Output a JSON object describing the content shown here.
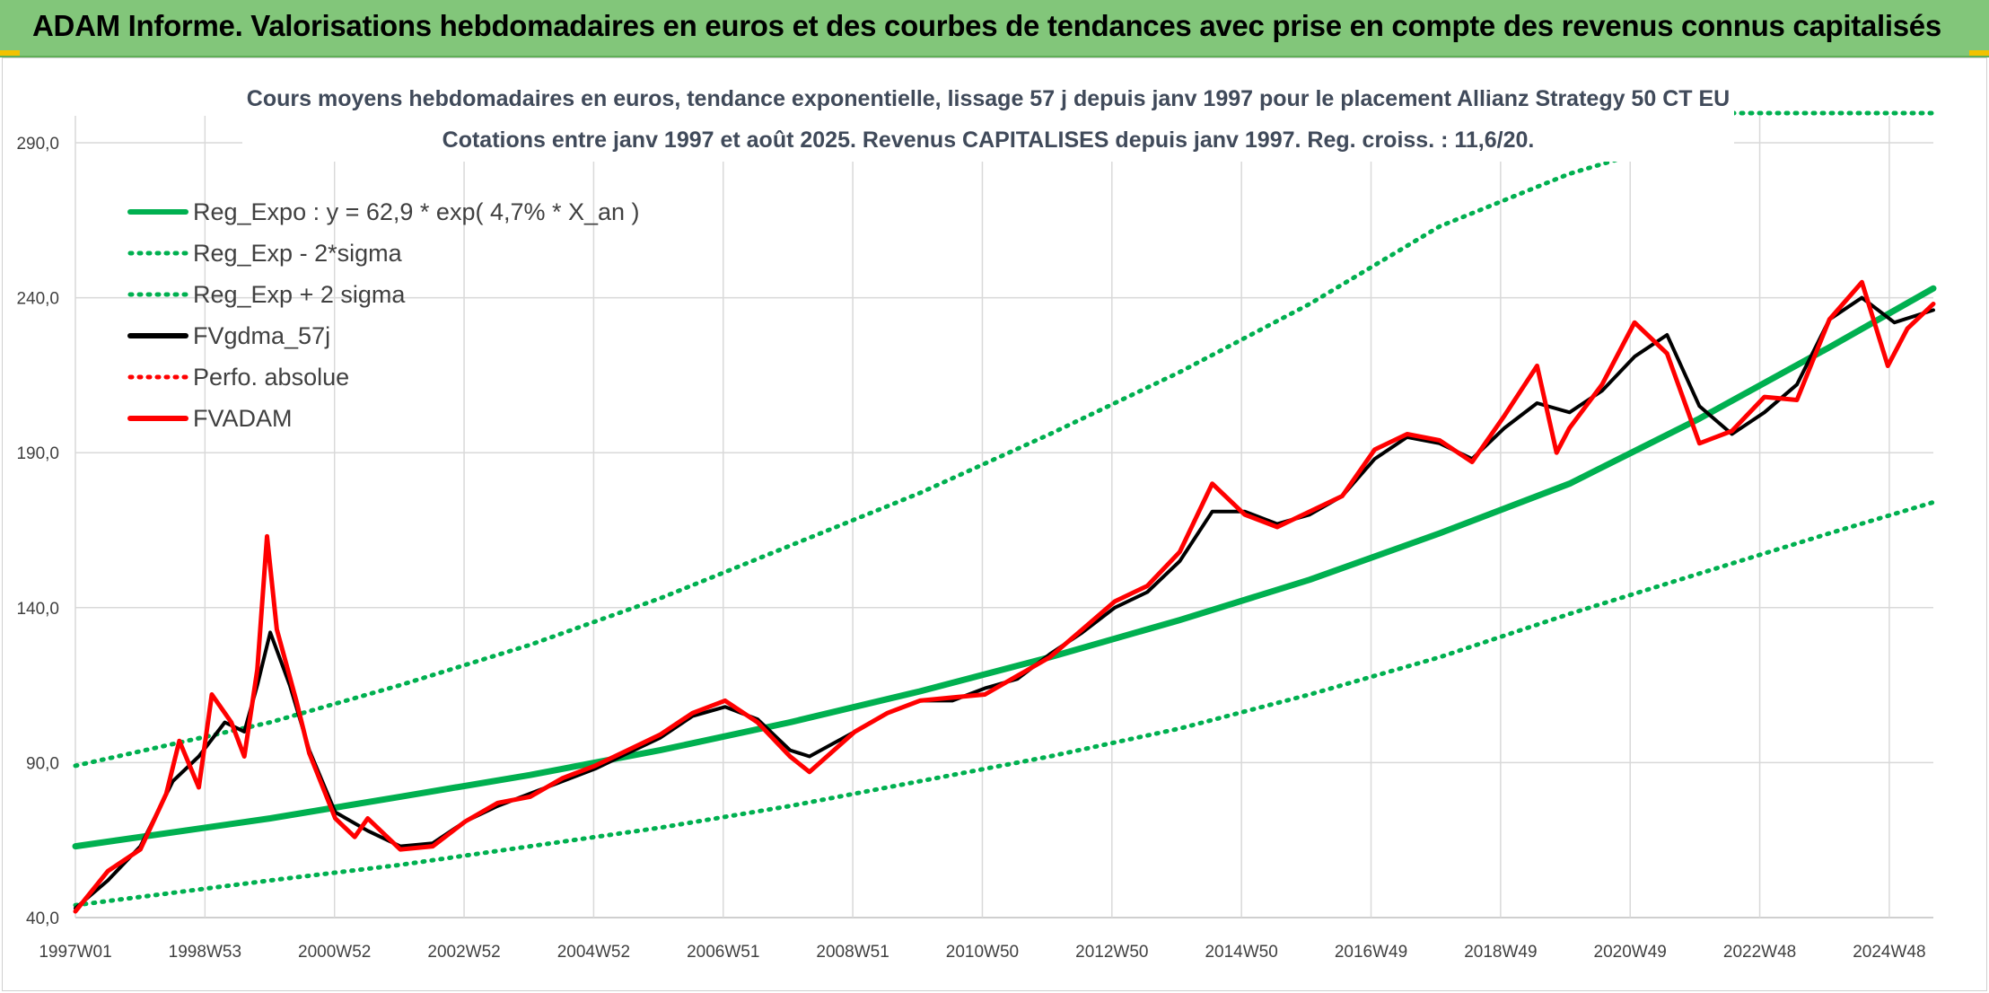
{
  "header": {
    "title": "ADAM Informe. Valorisations hebdomadaires en euros et des courbes de tendances avec prise en compte des revenus connus capitalisés"
  },
  "chart_data": {
    "type": "line",
    "title": "Cours moyens hebdomadaires en euros, tendance exponentielle, lissage 57 j depuis janv 1997 pour le placement Allianz Strategy 50 CT EU",
    "subtitle": "Cotations entre janv 1997 et août 2025. Revenus CAPITALISES depuis janv 1997. Reg. croiss. : 11,6/20.",
    "xlabel": "",
    "ylabel": "",
    "xlim": [
      1997.0,
      2025.6
    ],
    "ylim": [
      40,
      290
    ],
    "yticks": [
      "40,0",
      "90,0",
      "140,0",
      "190,0",
      "240,0",
      "290,0"
    ],
    "xticks": [
      "1997W01",
      "1998W53",
      "2000W52",
      "2002W52",
      "2004W52",
      "2006W51",
      "2008W51",
      "2010W50",
      "2012W50",
      "2014W50",
      "2016W49",
      "2018W49",
      "2020W49",
      "2022W48",
      "2024W48"
    ],
    "grid": true,
    "legend_position": "top-left",
    "colors": {
      "green": "#00b050",
      "black": "#000000",
      "red": "#ff0000"
    },
    "series": [
      {
        "name": "Reg_Expo : y = 62,9 * exp( 4,7% *  X_an )",
        "style": "solid",
        "color": "#00b050",
        "x": [
          1997.0,
          2000.0,
          2002.0,
          2004.0,
          2006.0,
          2008.0,
          2010.0,
          2012.0,
          2014.0,
          2016.0,
          2018.0,
          2020.0,
          2022.0,
          2024.0,
          2025.6
        ],
        "y": [
          63,
          72,
          79,
          86,
          94,
          103,
          113,
          124,
          136,
          149,
          164,
          180,
          201,
          224,
          243
        ]
      },
      {
        "name": "Reg_Exp - 2*sigma",
        "style": "dotted",
        "color": "#00b050",
        "x": [
          1997.0,
          2000.0,
          2002.0,
          2004.0,
          2006.0,
          2008.0,
          2010.0,
          2012.0,
          2014.0,
          2016.0,
          2018.0,
          2020.0,
          2022.0,
          2024.0,
          2025.6
        ],
        "y": [
          44,
          52,
          57,
          63,
          69,
          76,
          84,
          92,
          101,
          112,
          124,
          138,
          151,
          164,
          174
        ]
      },
      {
        "name": "Reg_Exp + 2 sigma",
        "style": "dotted",
        "color": "#00b050",
        "x": [
          1997.0,
          2000.0,
          2002.0,
          2004.0,
          2006.0,
          2008.0,
          2010.0,
          2012.0,
          2014.0,
          2016.0,
          2018.0,
          2020.0,
          2021.6
        ],
        "y": [
          89,
          103,
          115,
          128,
          143,
          160,
          177,
          196,
          216,
          238,
          263,
          280,
          290
        ]
      },
      {
        "name": "FVgdma_57j",
        "style": "solid",
        "color": "#000000",
        "x": [
          1997.0,
          1997.5,
          1998.0,
          1998.5,
          1998.9,
          1999.3,
          1999.6,
          1999.8,
          2000.0,
          2000.3,
          2000.6,
          2001.0,
          2001.5,
          2002.0,
          2002.5,
          2003.0,
          2003.5,
          2004.0,
          2004.5,
          2005.0,
          2005.5,
          2006.0,
          2006.5,
          2007.0,
          2007.5,
          2008.0,
          2008.3,
          2009.0,
          2009.5,
          2010.0,
          2010.5,
          2011.0,
          2011.5,
          2012.0,
          2012.5,
          2013.0,
          2013.5,
          2014.0,
          2014.5,
          2015.0,
          2015.5,
          2016.0,
          2016.5,
          2017.0,
          2017.5,
          2018.0,
          2018.5,
          2019.0,
          2019.5,
          2020.0,
          2020.5,
          2021.0,
          2021.5,
          2022.0,
          2022.5,
          2023.0,
          2023.5,
          2024.0,
          2024.5,
          2025.0,
          2025.6
        ],
        "y": [
          43,
          52,
          63,
          84,
          92,
          103,
          100,
          115,
          132,
          115,
          94,
          74,
          68,
          63,
          64,
          71,
          76,
          80,
          84,
          88,
          93,
          98,
          105,
          108,
          104,
          94,
          92,
          100,
          106,
          110,
          110,
          114,
          117,
          125,
          132,
          140,
          145,
          155,
          171,
          171,
          167,
          170,
          176,
          188,
          195,
          193,
          188,
          198,
          206,
          203,
          210,
          221,
          228,
          205,
          196,
          203,
          212,
          233,
          240,
          232,
          236
        ]
      },
      {
        "name": "Perfo. absolue",
        "style": "dotted",
        "color": "#ff0000",
        "x": [],
        "y": []
      },
      {
        "name": "FVADAM",
        "style": "solid",
        "color": "#ff0000",
        "x": [
          1997.0,
          1997.5,
          1998.0,
          1998.4,
          1998.6,
          1998.9,
          1999.1,
          1999.4,
          1999.6,
          1999.8,
          1999.95,
          2000.1,
          2000.4,
          2000.6,
          2001.0,
          2001.3,
          2001.5,
          2002.0,
          2002.5,
          2003.0,
          2003.5,
          2004.0,
          2004.5,
          2005.0,
          2005.5,
          2006.0,
          2006.5,
          2007.0,
          2007.5,
          2008.0,
          2008.3,
          2009.0,
          2009.5,
          2010.0,
          2010.5,
          2011.0,
          2011.5,
          2012.0,
          2012.5,
          2013.0,
          2013.5,
          2014.0,
          2014.5,
          2015.0,
          2015.5,
          2016.0,
          2016.5,
          2017.0,
          2017.5,
          2018.0,
          2018.5,
          2019.0,
          2019.5,
          2019.8,
          2020.0,
          2020.5,
          2021.0,
          2021.5,
          2022.0,
          2022.5,
          2023.0,
          2023.5,
          2024.0,
          2024.5,
          2024.9,
          2025.2,
          2025.6
        ],
        "y": [
          42,
          55,
          62,
          80,
          97,
          82,
          112,
          103,
          92,
          120,
          163,
          133,
          110,
          93,
          72,
          66,
          72,
          62,
          63,
          71,
          77,
          79,
          85,
          89,
          94,
          99,
          106,
          110,
          103,
          92,
          87,
          100,
          106,
          110,
          111,
          112,
          118,
          124,
          133,
          142,
          147,
          158,
          180,
          170,
          166,
          171,
          176,
          191,
          196,
          194,
          187,
          202,
          218,
          190,
          198,
          212,
          232,
          222,
          193,
          197,
          208,
          207,
          233,
          245,
          218,
          230,
          238
        ]
      }
    ]
  }
}
